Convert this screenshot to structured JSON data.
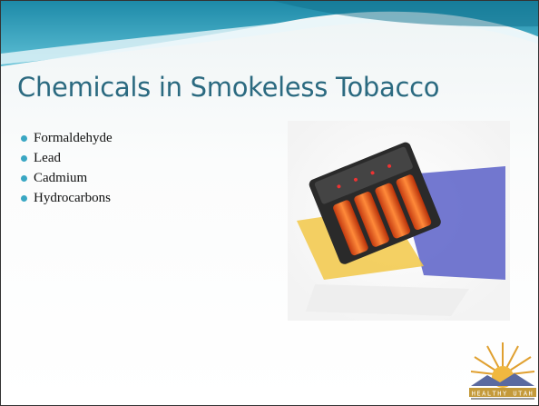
{
  "slide": {
    "title": "Chemicals in Smokeless Tobacco",
    "bullets": [
      "Formaldehyde",
      "Lead",
      "Cadmium",
      "Hydrocarbons"
    ],
    "logo": {
      "text": "HEALTHY UTAH"
    }
  }
}
